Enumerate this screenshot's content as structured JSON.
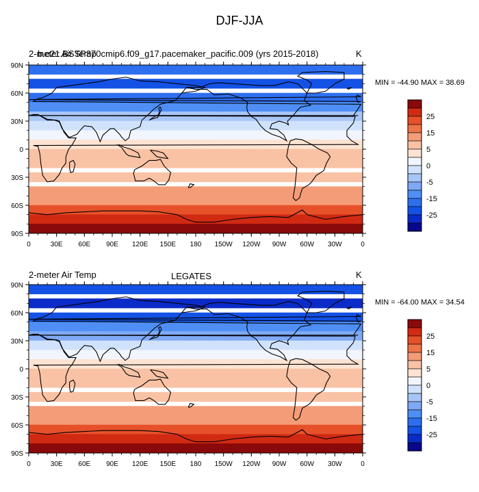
{
  "title": "DJF-JJA",
  "palette": [
    "#08088a",
    "#0b2bc8",
    "#1452e6",
    "#2e6ff0",
    "#4f8ff5",
    "#7fa9f4",
    "#a8c5f7",
    "#d0e2fb",
    "#f1f5fd",
    "#fde3d2",
    "#f9c2a5",
    "#f49c78",
    "#ee7548",
    "#e6512a",
    "#d02a13",
    "#8a0a0a"
  ],
  "colorbar_ticks": [
    "25",
    "15",
    "5",
    "0",
    "-5",
    "-15",
    "-25"
  ],
  "x_ticks": [
    "0",
    "30E",
    "60E",
    "90E",
    "120E",
    "150E",
    "180",
    "150W",
    "120W",
    "90W",
    "60W",
    "30W",
    "0"
  ],
  "y_ticks": [
    "90N",
    "60N",
    "30N",
    "0",
    "30S",
    "60S",
    "90S"
  ],
  "panels": [
    {
      "left_label": "2-meter Air Temp",
      "center_label": "b.e21.BSSP370cmip6.f09_g17.pacemaker_pacific.009 (yrs 2015-2018)",
      "units": "K",
      "stats": "MIN = -44.90 MAX =  38.69"
    },
    {
      "left_label": "2-meter Air Temp",
      "center_label": "LEGATES",
      "units": "K",
      "stats": "MIN = -64.00 MAX =  34.54"
    }
  ],
  "chart_data": [
    {
      "type": "heatmap",
      "title": "DJF-JJA",
      "field": "2-meter Air Temp",
      "case": "b.e21.BSSP370cmip6.f09_g17.pacemaker_pacific.009 (yrs 2015-2018)",
      "units": "K",
      "min": -44.9,
      "max": 38.69,
      "xlim": [
        0,
        360
      ],
      "ylim": [
        -90,
        90
      ],
      "x_ticks": [
        "0",
        "30E",
        "60E",
        "90E",
        "120E",
        "150E",
        "180",
        "150W",
        "120W",
        "90W",
        "60W",
        "30W",
        "0"
      ],
      "y_ticks": [
        "90N",
        "60N",
        "30N",
        "0",
        "30S",
        "60S",
        "90S"
      ],
      "contour_levels": [
        -35,
        -30,
        -25,
        -20,
        -15,
        -10,
        -5,
        -2,
        0,
        2,
        5,
        10,
        15,
        20,
        25,
        30
      ],
      "colorbar_labels": [
        25,
        15,
        5,
        0,
        -5,
        -15,
        -25
      ],
      "zonal_profile": [
        {
          "lat": 85,
          "value": -25
        },
        {
          "lat": 70,
          "value": -30
        },
        {
          "lat": 55,
          "value": -25
        },
        {
          "lat": 45,
          "value": -18
        },
        {
          "lat": 35,
          "value": -10
        },
        {
          "lat": 25,
          "value": -5
        },
        {
          "lat": 15,
          "value": -2
        },
        {
          "lat": 5,
          "value": 0
        },
        {
          "lat": -5,
          "value": 2
        },
        {
          "lat": -15,
          "value": 3
        },
        {
          "lat": -30,
          "value": 4
        },
        {
          "lat": -45,
          "value": 6
        },
        {
          "lat": -55,
          "value": 8
        },
        {
          "lat": -65,
          "value": 15
        },
        {
          "lat": -75,
          "value": 22
        },
        {
          "lat": -85,
          "value": 28
        }
      ]
    },
    {
      "type": "heatmap",
      "title": "DJF-JJA",
      "field": "2-meter Air Temp",
      "case": "LEGATES",
      "units": "K",
      "min": -64.0,
      "max": 34.54,
      "xlim": [
        0,
        360
      ],
      "ylim": [
        -90,
        90
      ],
      "x_ticks": [
        "0",
        "30E",
        "60E",
        "90E",
        "120E",
        "150E",
        "180",
        "150W",
        "120W",
        "90W",
        "60W",
        "30W",
        "0"
      ],
      "y_ticks": [
        "90N",
        "60N",
        "30N",
        "0",
        "30S",
        "60S",
        "90S"
      ],
      "contour_levels": [
        -35,
        -30,
        -25,
        -20,
        -15,
        -10,
        -5,
        -2,
        0,
        2,
        5,
        10,
        15,
        20,
        25,
        30
      ],
      "colorbar_labels": [
        25,
        15,
        5,
        0,
        -5,
        -15,
        -25
      ],
      "zonal_profile": [
        {
          "lat": 85,
          "value": -30
        },
        {
          "lat": 70,
          "value": -35
        },
        {
          "lat": 55,
          "value": -28
        },
        {
          "lat": 45,
          "value": -20
        },
        {
          "lat": 35,
          "value": -12
        },
        {
          "lat": 25,
          "value": -5
        },
        {
          "lat": 15,
          "value": -2
        },
        {
          "lat": 5,
          "value": 0
        },
        {
          "lat": -5,
          "value": 2
        },
        {
          "lat": -15,
          "value": 3
        },
        {
          "lat": -30,
          "value": 4
        },
        {
          "lat": -45,
          "value": 6
        },
        {
          "lat": -55,
          "value": 8
        },
        {
          "lat": -65,
          "value": 18
        },
        {
          "lat": -75,
          "value": 22
        },
        {
          "lat": -85,
          "value": 25
        }
      ]
    }
  ]
}
